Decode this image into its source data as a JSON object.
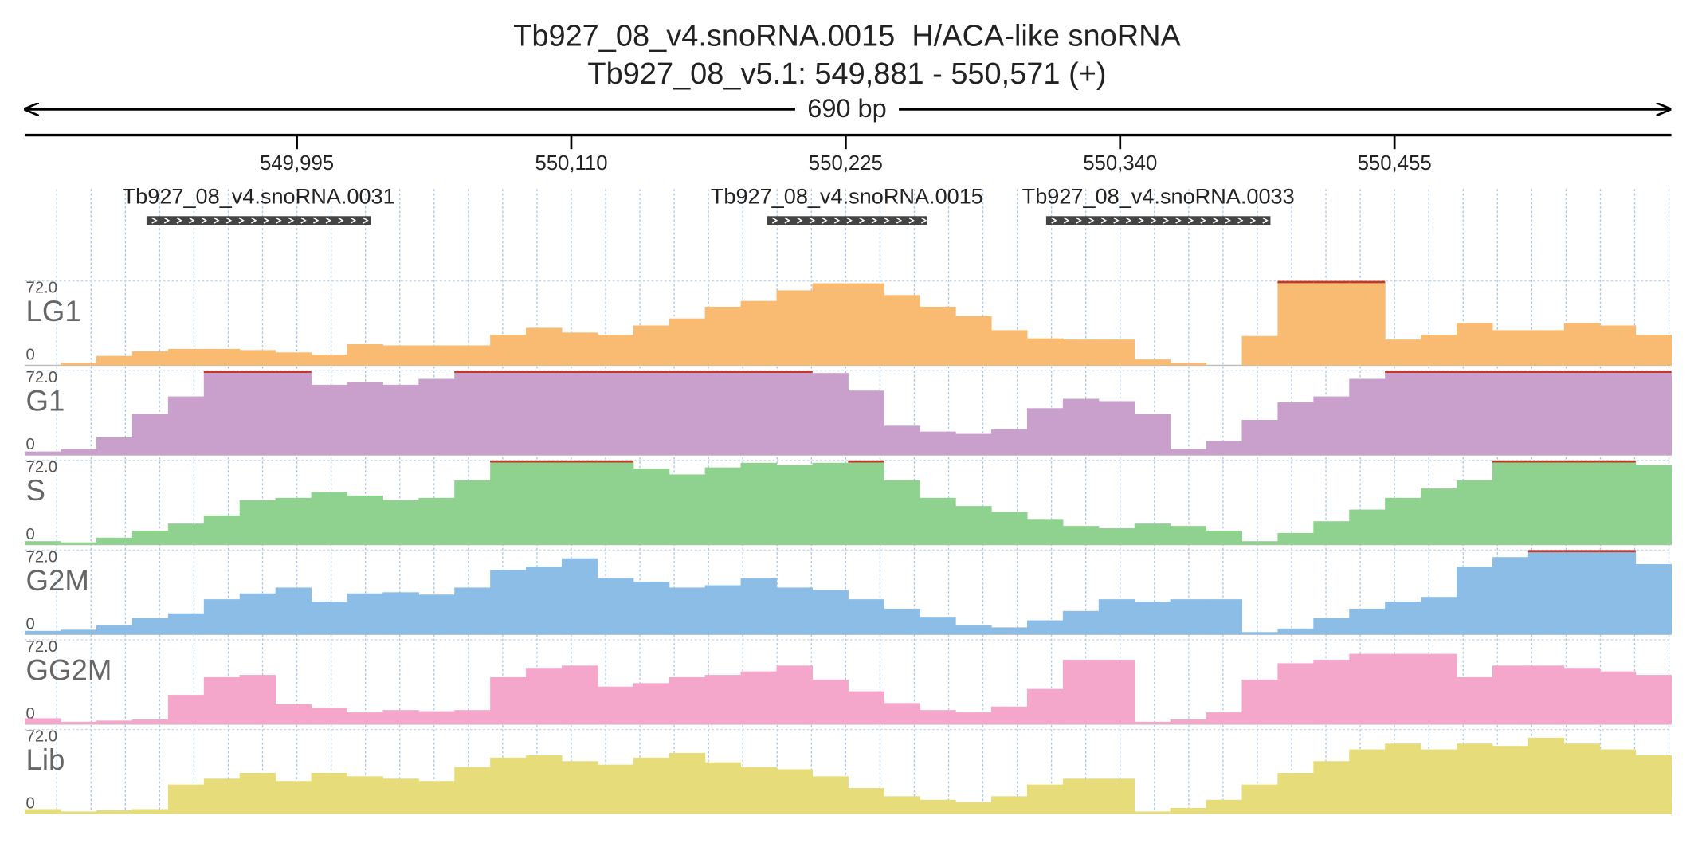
{
  "chart_data": {
    "type": "coverage",
    "title": "Tb927_08_v4.snoRNA.0015  H/ACA-like snoRNA",
    "subtitle": "Tb927_08_v5.1: 549,881 - 550,571 (+)",
    "span_label": "690 bp",
    "xlim": [
      549881,
      550571
    ],
    "xticks": [
      {
        "value": 549995,
        "label": "549,995"
      },
      {
        "value": 550110,
        "label": "550,110"
      },
      {
        "value": 550225,
        "label": "550,225"
      },
      {
        "value": 550340,
        "label": "550,340"
      },
      {
        "value": 550455,
        "label": "550,455"
      }
    ],
    "features": [
      {
        "name": "Tb927_08_v4.snoRNA.0031",
        "start": 549932,
        "end": 550026
      },
      {
        "name": "Tb927_08_v4.snoRNA.0015",
        "start": 550192,
        "end": 550259
      },
      {
        "name": "Tb927_08_v4.snoRNA.0033",
        "start": 550309,
        "end": 550403
      }
    ],
    "tracks": [
      {
        "name": "LG1",
        "color": "#f9bb72",
        "ylim": [
          0,
          72
        ],
        "yticks": [
          0,
          {
            "value": 72,
            "label": "72.0"
          }
        ],
        "values": [
          0,
          2,
          8,
          12,
          14,
          14,
          13,
          11,
          9,
          18,
          17,
          17,
          17,
          26,
          32,
          28,
          26,
          34,
          40,
          50,
          55,
          64,
          70,
          70,
          60,
          50,
          42,
          30,
          23,
          22,
          22,
          5,
          2,
          0,
          25,
          72,
          72,
          72,
          22,
          26,
          36,
          30,
          30,
          36,
          34,
          26
        ]
      },
      {
        "name": "G1",
        "color": "#c9a0cb",
        "ylim": [
          0,
          72
        ],
        "yticks": [
          0,
          {
            "value": 72,
            "label": "72.0"
          }
        ],
        "values": [
          3,
          5,
          15,
          35,
          50,
          72,
          72,
          72,
          60,
          62,
          60,
          65,
          72,
          72,
          72,
          72,
          72,
          72,
          72,
          72,
          72,
          72,
          70,
          55,
          25,
          20,
          18,
          22,
          40,
          48,
          46,
          35,
          5,
          12,
          30,
          45,
          50,
          65,
          72,
          72,
          72,
          72,
          72,
          72,
          72,
          72
        ]
      },
      {
        "name": "S",
        "color": "#8fd18e",
        "ylim": [
          0,
          72
        ],
        "yticks": [
          0,
          {
            "value": 72,
            "label": "72.0"
          }
        ],
        "values": [
          3,
          2,
          6,
          12,
          18,
          25,
          38,
          40,
          45,
          42,
          38,
          40,
          55,
          72,
          72,
          72,
          72,
          65,
          60,
          66,
          70,
          68,
          70,
          72,
          55,
          40,
          33,
          28,
          22,
          16,
          14,
          18,
          16,
          12,
          3,
          10,
          20,
          30,
          40,
          48,
          55,
          72,
          72,
          72,
          72,
          68
        ]
      },
      {
        "name": "G2M",
        "color": "#8bbde6",
        "ylim": [
          0,
          72
        ],
        "yticks": [
          0,
          {
            "value": 72,
            "label": "72.0"
          }
        ],
        "values": [
          3,
          4,
          8,
          14,
          18,
          30,
          35,
          40,
          28,
          35,
          36,
          34,
          40,
          55,
          58,
          65,
          48,
          45,
          40,
          42,
          48,
          40,
          38,
          30,
          22,
          15,
          8,
          6,
          12,
          20,
          30,
          28,
          30,
          30,
          2,
          5,
          14,
          22,
          28,
          32,
          58,
          66,
          72,
          72,
          72,
          60
        ]
      },
      {
        "name": "GG2M",
        "color": "#f4a6cb",
        "ylim": [
          0,
          72
        ],
        "yticks": [
          0,
          {
            "value": 72,
            "label": "72.0"
          }
        ],
        "values": [
          5,
          2,
          3,
          4,
          25,
          40,
          42,
          17,
          14,
          10,
          12,
          11,
          12,
          40,
          48,
          50,
          32,
          35,
          40,
          42,
          45,
          50,
          38,
          28,
          18,
          12,
          10,
          15,
          30,
          55,
          55,
          2,
          4,
          10,
          38,
          52,
          55,
          60,
          60,
          60,
          40,
          50,
          50,
          48,
          45,
          42
        ]
      },
      {
        "name": "Lib",
        "color": "#e6dc7a",
        "ylim": [
          0,
          72
        ],
        "yticks": [
          0,
          {
            "value": 72,
            "label": "72.0"
          }
        ],
        "values": [
          4,
          2,
          3,
          4,
          25,
          30,
          35,
          28,
          35,
          32,
          30,
          28,
          40,
          48,
          50,
          45,
          42,
          48,
          52,
          44,
          40,
          38,
          32,
          22,
          15,
          12,
          10,
          15,
          25,
          30,
          30,
          2,
          5,
          12,
          25,
          35,
          45,
          55,
          60,
          55,
          60,
          58,
          65,
          60,
          55,
          50
        ]
      }
    ]
  }
}
